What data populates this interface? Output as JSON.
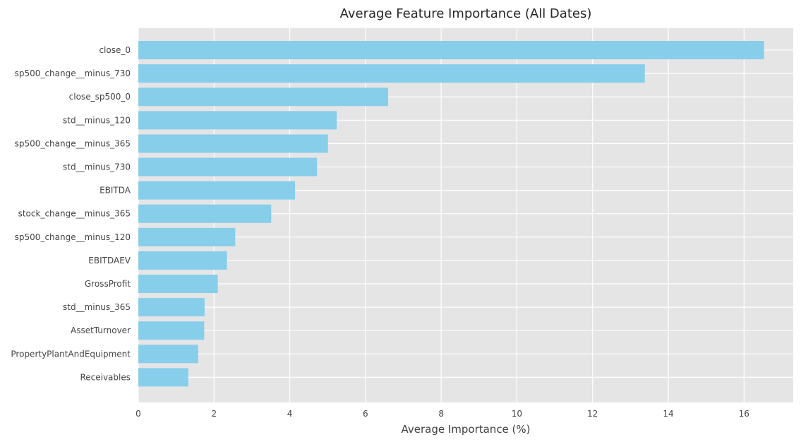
{
  "chart_data": {
    "type": "bar",
    "orientation": "horizontal",
    "title": "Average Feature Importance (All Dates)",
    "xlabel": "Average Importance (%)",
    "ylabel": "",
    "xlim": [
      0,
      17.3
    ],
    "xticks": [
      0,
      2,
      4,
      6,
      8,
      10,
      12,
      14,
      16
    ],
    "grid": true,
    "bar_color": "#87ceeb",
    "background_color": "#e5e5e5",
    "grid_color": "#ffffff",
    "categories": [
      "close_0",
      "sp500_change__minus_730",
      "close_sp500_0",
      "std__minus_120",
      "sp500_change__minus_365",
      "std__minus_730",
      "EBITDA",
      "stock_change__minus_365",
      "sp500_change__minus_120",
      "EBITDAEV",
      "GrossProfit",
      "std__minus_365",
      "AssetTurnover",
      "PropertyPlantAndEquipment",
      "Receivables"
    ],
    "values": [
      16.53,
      13.38,
      6.6,
      5.24,
      5.01,
      4.72,
      4.14,
      3.51,
      2.56,
      2.34,
      2.1,
      1.75,
      1.74,
      1.58,
      1.32
    ]
  }
}
